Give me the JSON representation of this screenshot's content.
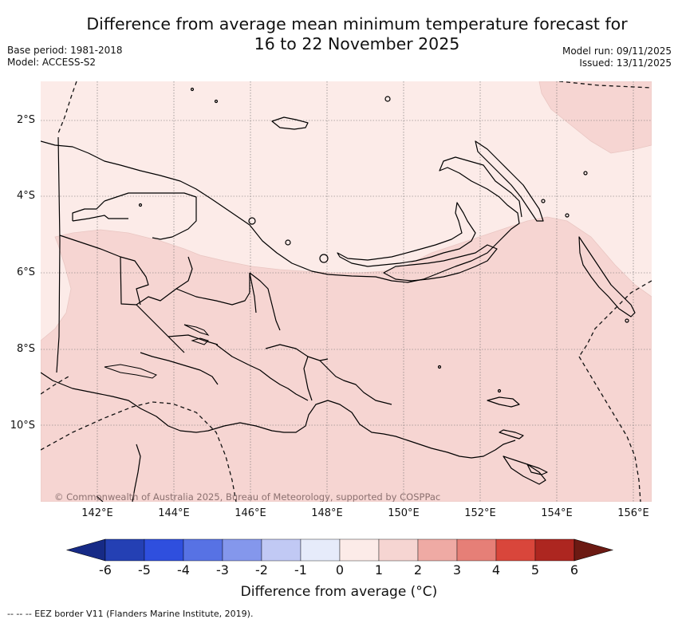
{
  "title_line1": "Difference from average mean minimum temperature forecast for",
  "title_line2": "16 to 22 November 2025",
  "base_period": "Base period: 1981-2018",
  "model": "Model: ACCESS-S2",
  "model_run": "Model run: 09/11/2025",
  "issued": "Issued: 13/11/2025",
  "copyright": "© Commonwealth of Australia 2025, Bureau of Meteorology, supported by COSPPac",
  "lat_labels": [
    "2°S",
    "4°S",
    "6°S",
    "8°S",
    "10°S"
  ],
  "lon_labels": [
    "142°E",
    "144°E",
    "146°E",
    "148°E",
    "150°E",
    "152°E",
    "154°E",
    "156°E"
  ],
  "colorbar": {
    "ticks": [
      "-6",
      "-5",
      "-4",
      "-3",
      "-2",
      "-1",
      "0",
      "1",
      "2",
      "3",
      "4",
      "5",
      "6"
    ],
    "colors": [
      "#162a86",
      "#2440b4",
      "#2f4fde",
      "#5772e4",
      "#8497ec",
      "#c1c9f4",
      "#e6ebfa",
      "#fcebe8",
      "#f6d5d2",
      "#efaaa4",
      "#e67f77",
      "#d9463b",
      "#ad2620",
      "#6c1a13"
    ],
    "title": "Difference from average (°C)"
  },
  "map_colors": {
    "zero_to_one": "#fcebe8",
    "one_to_two": "#f6d5d2"
  },
  "footer": "-- -- -- EEZ border V11 (Flanders Marine Institute, 2019)."
}
